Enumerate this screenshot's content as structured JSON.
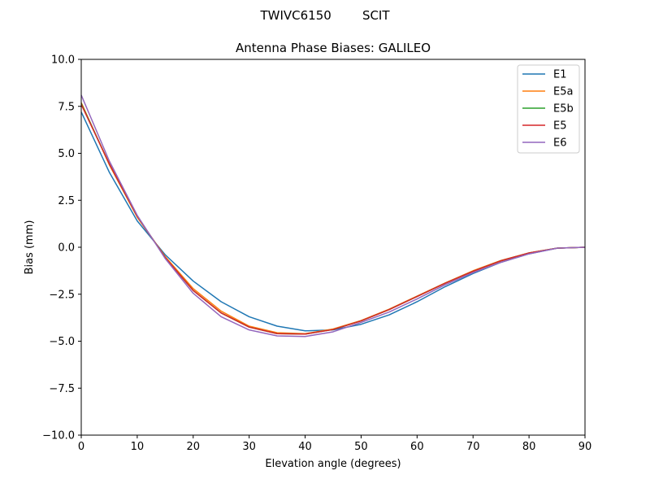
{
  "chart_data": {
    "type": "line",
    "suptitle": "TWIVC6150        SCIT",
    "title": "Antenna Phase Biases: GALILEO",
    "xlabel": "Elevation angle (degrees)",
    "ylabel": "Bias (mm)",
    "xlim": [
      0,
      90
    ],
    "ylim": [
      -10,
      10
    ],
    "xticks": [
      0,
      10,
      20,
      30,
      40,
      50,
      60,
      70,
      80,
      90
    ],
    "yticks": [
      -10.0,
      -7.5,
      -5.0,
      -2.5,
      0.0,
      2.5,
      5.0,
      7.5,
      10.0
    ],
    "xtick_labels": [
      "0",
      "10",
      "20",
      "30",
      "40",
      "50",
      "60",
      "70",
      "80",
      "90"
    ],
    "ytick_labels": [
      "−10.0",
      "−7.5",
      "−5.0",
      "−2.5",
      "0.0",
      "2.5",
      "5.0",
      "7.5",
      "10.0"
    ],
    "grid": false,
    "legend_position": "top-right",
    "x": [
      0,
      5,
      10,
      15,
      20,
      25,
      30,
      35,
      40,
      45,
      50,
      55,
      60,
      65,
      70,
      75,
      80,
      85,
      90
    ],
    "series": [
      {
        "name": "E1",
        "color": "#1f77b4",
        "values": [
          7.2,
          4.0,
          1.4,
          -0.4,
          -1.8,
          -2.9,
          -3.7,
          -4.2,
          -4.45,
          -4.4,
          -4.1,
          -3.6,
          -2.9,
          -2.1,
          -1.4,
          -0.8,
          -0.35,
          -0.05,
          0.0
        ]
      },
      {
        "name": "E5a",
        "color": "#ff7f0e",
        "values": [
          7.7,
          4.4,
          1.6,
          -0.5,
          -2.2,
          -3.4,
          -4.2,
          -4.55,
          -4.6,
          -4.35,
          -3.9,
          -3.3,
          -2.6,
          -1.9,
          -1.25,
          -0.7,
          -0.3,
          -0.05,
          0.0
        ]
      },
      {
        "name": "E5b",
        "color": "#2ca02c",
        "values": [
          7.65,
          4.45,
          1.65,
          -0.55,
          -2.3,
          -3.5,
          -4.25,
          -4.6,
          -4.62,
          -4.38,
          -3.92,
          -3.32,
          -2.62,
          -1.92,
          -1.28,
          -0.72,
          -0.3,
          -0.05,
          0.0
        ]
      },
      {
        "name": "E5",
        "color": "#d62728",
        "values": [
          7.6,
          4.45,
          1.65,
          -0.55,
          -2.3,
          -3.5,
          -4.25,
          -4.6,
          -4.62,
          -4.38,
          -3.92,
          -3.32,
          -2.62,
          -1.92,
          -1.28,
          -0.72,
          -0.3,
          -0.05,
          0.0
        ]
      },
      {
        "name": "E6",
        "color": "#9467bd",
        "values": [
          8.1,
          4.6,
          1.7,
          -0.6,
          -2.45,
          -3.7,
          -4.4,
          -4.72,
          -4.75,
          -4.5,
          -4.0,
          -3.45,
          -2.75,
          -2.0,
          -1.35,
          -0.8,
          -0.35,
          -0.05,
          0.0
        ]
      }
    ]
  }
}
